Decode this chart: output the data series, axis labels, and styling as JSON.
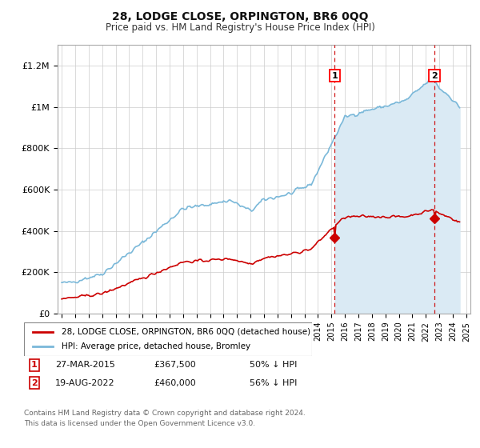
{
  "title": "28, LODGE CLOSE, ORPINGTON, BR6 0QQ",
  "subtitle": "Price paid vs. HM Land Registry's House Price Index (HPI)",
  "ylim": [
    0,
    1300000
  ],
  "yticks": [
    0,
    200000,
    400000,
    600000,
    800000,
    1000000,
    1200000
  ],
  "ytick_labels": [
    "£0",
    "£200K",
    "£400K",
    "£600K",
    "£800K",
    "£1M",
    "£1.2M"
  ],
  "hpi_color": "#7ab8d9",
  "hpi_fill_color": "#daeaf4",
  "price_color": "#cc0000",
  "marker1_date": 2015.23,
  "marker1_price": 367500,
  "marker1_label": "27-MAR-2015",
  "marker1_amount": "£367,500",
  "marker1_pct": "50% ↓ HPI",
  "marker2_date": 2022.635,
  "marker2_price": 460000,
  "marker2_label": "19-AUG-2022",
  "marker2_amount": "£460,000",
  "marker2_pct": "56% ↓ HPI",
  "legend_line1": "28, LODGE CLOSE, ORPINGTON, BR6 0QQ (detached house)",
  "legend_line2": "HPI: Average price, detached house, Bromley",
  "footnote": "Contains HM Land Registry data © Crown copyright and database right 2024.\nThis data is licensed under the Open Government Licence v3.0.",
  "background_color": "#ffffff",
  "grid_color": "#cccccc",
  "spine_color": "#aaaaaa"
}
